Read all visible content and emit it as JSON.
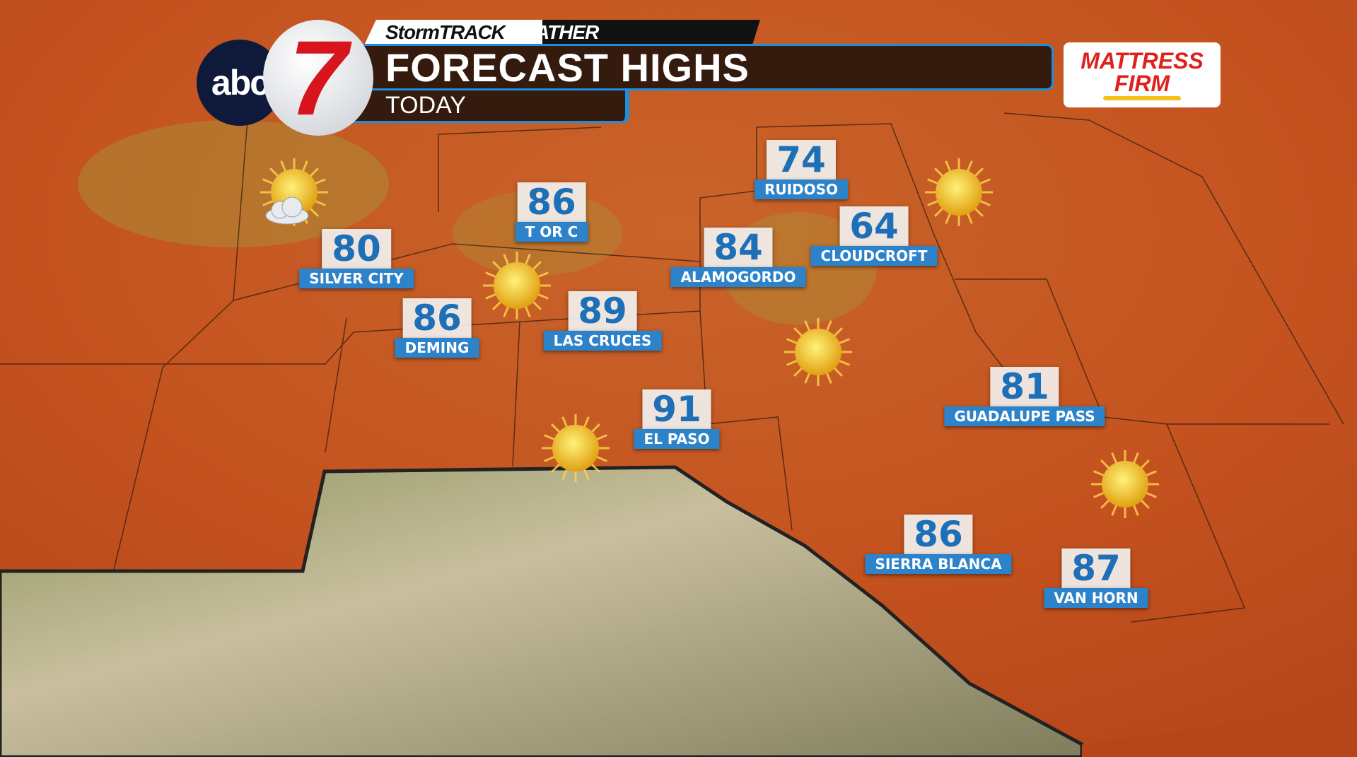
{
  "header": {
    "brand_part1": "StormTRACK",
    "brand_part2": "WEATHER",
    "title": "FORECAST HIGHS",
    "subtitle": "TODAY",
    "station_logo_text": "abc",
    "station_number": "7",
    "sponsor_line1": "MATTRESS",
    "sponsor_line2": "FIRM"
  },
  "colors": {
    "temp_text": "#1d6fb8",
    "label_bg": "#2d83c9",
    "accent_bar": "#1a8fe0",
    "sponsor_red": "#e0201c"
  },
  "cities": [
    {
      "name": "RUIDOSO",
      "temp": "74"
    },
    {
      "name": "T OR C",
      "temp": "86"
    },
    {
      "name": "SILVER CITY",
      "temp": "80"
    },
    {
      "name": "ALAMOGORDO",
      "temp": "84"
    },
    {
      "name": "CLOUDCROFT",
      "temp": "64"
    },
    {
      "name": "DEMING",
      "temp": "86"
    },
    {
      "name": "LAS CRUCES",
      "temp": "89"
    },
    {
      "name": "EL PASO",
      "temp": "91"
    },
    {
      "name": "GUADALUPE PASS",
      "temp": "81"
    },
    {
      "name": "SIERRA BLANCA",
      "temp": "86"
    },
    {
      "name": "VAN HORN",
      "temp": "87"
    }
  ],
  "weather_icons": [
    "partly-cloudy-icon",
    "sun-icon",
    "sun-icon",
    "sun-icon",
    "sun-icon",
    "sun-icon"
  ]
}
